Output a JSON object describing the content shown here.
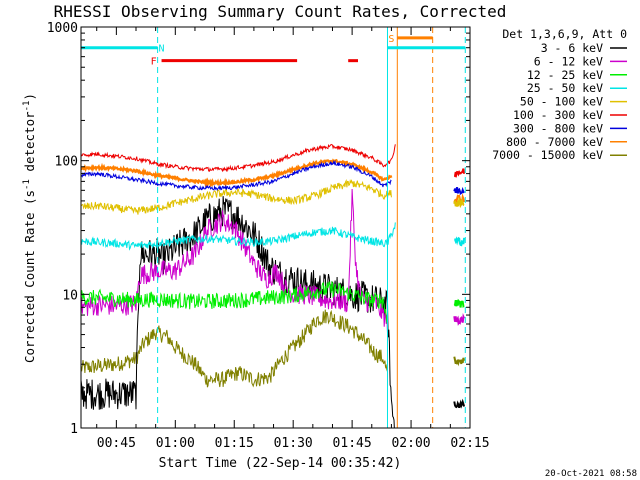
{
  "chart_data": {
    "type": "line",
    "title": "RHESSI Observing Summary Count Rates, Corrected",
    "xlabel": "Start Time (22-Sep-14 00:35:42)",
    "ylabel": "Corrected Count Rate (s^-1 detector^-1)",
    "ylabel_main": "Corrected Count Rate (s",
    "ylabel_sup1": "-1",
    "ylabel_mid": " detector",
    "ylabel_sup2": "-1",
    "ylabel_end": ")",
    "y_scale": "log",
    "xlim_minutes": [
      36,
      135
    ],
    "ylim": [
      1,
      1000
    ],
    "x_ticks": [
      {
        "minute": 45,
        "label": "00:45"
      },
      {
        "minute": 60,
        "label": "01:00"
      },
      {
        "minute": 75,
        "label": "01:15"
      },
      {
        "minute": 90,
        "label": "01:30"
      },
      {
        "minute": 105,
        "label": "01:45"
      },
      {
        "minute": 120,
        "label": "02:00"
      },
      {
        "minute": 135,
        "label": "02:15"
      }
    ],
    "y_ticks": [
      {
        "value": 1,
        "label": "1"
      },
      {
        "value": 10,
        "label": "10"
      },
      {
        "value": 100,
        "label": "100"
      },
      {
        "value": 1000,
        "label": "1000"
      }
    ],
    "legend_title": "Det 1,3,6,9, Att 0",
    "legend_placement": "right",
    "series": [
      {
        "name": "3 - 6 keV",
        "color": "#000000",
        "x": [
          36,
          50,
          51,
          56,
          56.5,
          60,
          65,
          68,
          72,
          75,
          77,
          80,
          82,
          84,
          87,
          90,
          93,
          96,
          99,
          102,
          105,
          108,
          111,
          113,
          114,
          115,
          116
        ],
        "y": [
          1.8,
          1.8,
          20,
          20,
          18,
          22,
          28,
          36,
          42,
          40,
          35,
          28,
          22,
          16,
          14,
          13,
          12,
          11.5,
          11,
          10.5,
          10,
          9.5,
          9,
          8.5,
          8,
          1.5,
          1
        ]
      },
      {
        "name": "6 - 12 keV",
        "color": "#cc00cc",
        "x": [
          36,
          40,
          45,
          50,
          51,
          56,
          60,
          65,
          68,
          72,
          75,
          77,
          80,
          83,
          86,
          88,
          90,
          93,
          96,
          99,
          102,
          104,
          105,
          106,
          107,
          108,
          111,
          113,
          114
        ],
        "y": [
          8,
          8.3,
          8.2,
          8.5,
          14,
          15,
          15,
          20,
          30,
          36,
          32,
          25,
          17,
          13,
          15,
          11,
          10,
          10,
          9.5,
          9,
          9,
          8.6,
          55,
          16,
          10,
          9,
          8.5,
          7,
          6
        ]
      },
      {
        "name": "12 - 25 keV",
        "color": "#00ee00",
        "x": [
          36,
          45,
          50,
          55,
          60,
          65,
          70,
          75,
          80,
          85,
          90,
          95,
          100,
          105,
          110,
          113,
          114
        ],
        "y": [
          9.5,
          9.3,
          9,
          9.2,
          9,
          8.8,
          8.9,
          9,
          9.2,
          9.5,
          9.8,
          10.5,
          11,
          10,
          9,
          9,
          6
        ]
      },
      {
        "name": "25 - 50 keV",
        "color": "#00e5e5",
        "x": [
          36,
          45,
          50,
          55,
          60,
          65,
          70,
          75,
          80,
          85,
          90,
          95,
          100,
          105,
          110,
          113,
          114,
          116
        ],
        "y": [
          25,
          24,
          23,
          24,
          25,
          26,
          26,
          25,
          24.5,
          25,
          27,
          29,
          30,
          27,
          25,
          24,
          24,
          33
        ]
      },
      {
        "name": "50 - 100 keV",
        "color": "#e0c000",
        "x": [
          36,
          40,
          45,
          50,
          55,
          60,
          65,
          70,
          75,
          80,
          85,
          90,
          95,
          100,
          105,
          110,
          113,
          115
        ],
        "y": [
          45,
          46,
          44,
          42,
          44,
          48,
          52,
          56,
          58,
          56,
          52,
          50,
          54,
          62,
          68,
          62,
          55,
          57
        ]
      },
      {
        "name": "100 - 300 keV",
        "color": "#ee0000",
        "x": [
          36,
          40,
          45,
          50,
          55,
          60,
          65,
          70,
          75,
          80,
          85,
          90,
          95,
          100,
          105,
          110,
          113,
          115,
          116
        ],
        "y": [
          110,
          112,
          108,
          104,
          95,
          90,
          87,
          86,
          88,
          92,
          98,
          110,
          122,
          128,
          120,
          105,
          92,
          100,
          130
        ]
      },
      {
        "name": "300 - 800 keV",
        "color": "#0000dd",
        "x": [
          36,
          40,
          45,
          50,
          55,
          60,
          65,
          70,
          75,
          80,
          85,
          90,
          95,
          100,
          105,
          110,
          113,
          115
        ],
        "y": [
          78,
          80,
          76,
          72,
          68,
          65,
          63,
          62,
          63,
          66,
          70,
          80,
          90,
          96,
          90,
          76,
          65,
          70
        ]
      },
      {
        "name": "800 - 7000 keV",
        "color": "#ff8000",
        "x": [
          36,
          40,
          45,
          50,
          55,
          60,
          65,
          70,
          75,
          80,
          85,
          90,
          95,
          100,
          105,
          110,
          113,
          115
        ],
        "y": [
          88,
          89,
          87,
          84,
          78,
          74,
          70,
          68,
          69,
          72,
          77,
          86,
          95,
          100,
          94,
          82,
          72,
          76
        ]
      },
      {
        "name": "7000 - 15000 keV",
        "color": "#808000",
        "x": [
          36,
          45,
          50,
          52,
          55,
          58,
          60,
          65,
          68,
          72,
          76,
          80,
          84,
          87,
          90,
          93,
          96,
          99,
          102,
          105,
          108,
          111,
          113,
          114
        ],
        "y": [
          2.8,
          3.0,
          3.3,
          4.3,
          5.2,
          4.8,
          4.0,
          3.0,
          2.3,
          2.3,
          2.6,
          2.3,
          2.4,
          3.2,
          4.0,
          5.0,
          6.5,
          7.0,
          6.2,
          5.5,
          4.5,
          3.6,
          3.3,
          2.5
        ]
      }
    ],
    "post_gap_series": [
      {
        "color": "#ee0000",
        "x": [
          131,
          133.5
        ],
        "y": [
          82,
          82
        ]
      },
      {
        "color": "#0000dd",
        "x": [
          131,
          133.5
        ],
        "y": [
          60,
          60
        ]
      },
      {
        "color": "#ff8000",
        "x": [
          131,
          133.5
        ],
        "y": [
          52,
          52
        ]
      },
      {
        "color": "#e0c000",
        "x": [
          131,
          133.5
        ],
        "y": [
          48,
          48
        ]
      },
      {
        "color": "#00e5e5",
        "x": [
          131,
          133.5
        ],
        "y": [
          25,
          25
        ]
      },
      {
        "color": "#00ee00",
        "x": [
          131,
          133.5
        ],
        "y": [
          8.5,
          8.5
        ]
      },
      {
        "color": "#cc00cc",
        "x": [
          131,
          133.5
        ],
        "y": [
          6.5,
          6.5
        ]
      },
      {
        "color": "#808000",
        "x": [
          131,
          133.5
        ],
        "y": [
          3.2,
          3.2
        ]
      },
      {
        "color": "#000000",
        "x": [
          131,
          133.5
        ],
        "y": [
          1.5,
          1.5
        ]
      }
    ],
    "flag_bars": [
      {
        "label": "N",
        "color": "#00e5e5",
        "x_start": 36,
        "x_end": 55.5,
        "y": 700,
        "label_x": 56.5
      },
      {
        "label": "N",
        "color": "#00e5e5",
        "x_start": 114,
        "x_end": 133.8,
        "y": 700
      },
      {
        "label": "F",
        "color": "#ee0000",
        "x_start": 56.5,
        "x_end": 91,
        "y": 560,
        "label_x": 54.5
      },
      {
        "label": "F",
        "color": "#ee0000",
        "x_start": 104,
        "x_end": 106.5,
        "y": 560
      },
      {
        "label": "S",
        "color": "#ff8000",
        "x_start": 116.5,
        "x_end": 125.5,
        "y": 830,
        "label_x": 115
      }
    ],
    "vertical_markers": [
      {
        "color": "#00e5e5",
        "style": "dashed",
        "x": 55.5
      },
      {
        "color": "#00e5e5",
        "style": "solid",
        "x": 114
      },
      {
        "color": "#00e5e5",
        "style": "dashed",
        "x": 133.8
      },
      {
        "color": "#ff8000",
        "style": "solid",
        "x": 116.5
      },
      {
        "color": "#ff8000",
        "style": "dashed",
        "x": 125.5
      }
    ],
    "timestamp": "20-Oct-2021 08:58"
  }
}
